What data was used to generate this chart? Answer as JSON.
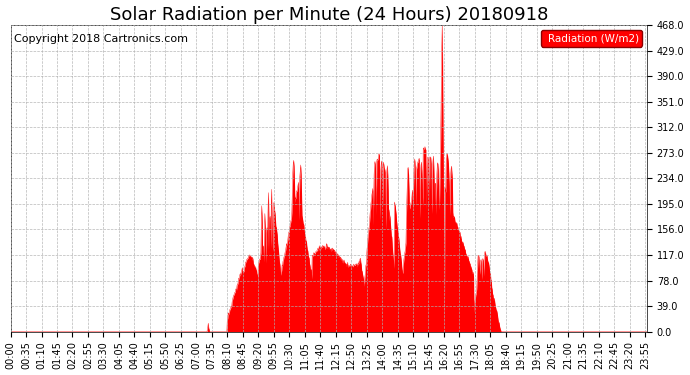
{
  "title": "Solar Radiation per Minute (24 Hours) 20180918",
  "copyright": "Copyright 2018 Cartronics.com",
  "legend_label": "Radiation (W/m2)",
  "ylim": [
    0.0,
    468.0
  ],
  "yticks": [
    0.0,
    39.0,
    78.0,
    117.0,
    156.0,
    195.0,
    234.0,
    273.0,
    312.0,
    351.0,
    390.0,
    429.0,
    468.0
  ],
  "fill_color": "#ff0000",
  "background_color": "#ffffff",
  "grid_color": "#b0b0b0",
  "title_fontsize": 13,
  "copyright_fontsize": 8,
  "tick_fontsize": 7,
  "x_tick_step": 35,
  "total_minutes": 1440,
  "sunrise_minute": 390,
  "sunset_minute": 1110
}
